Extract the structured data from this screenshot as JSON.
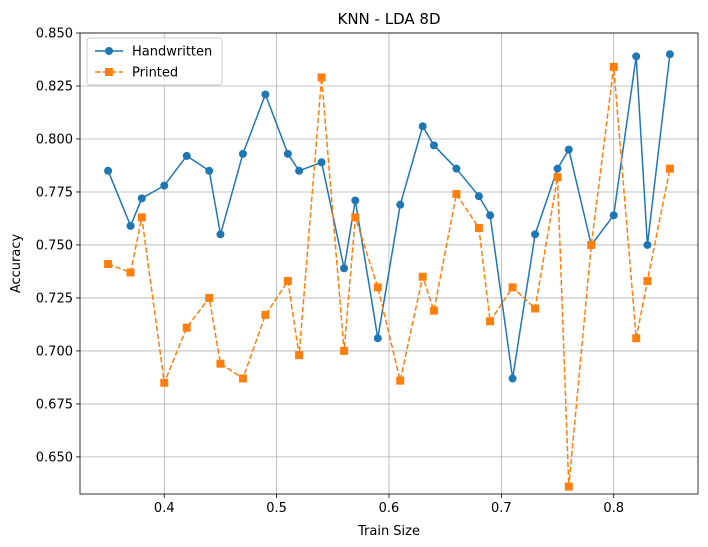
{
  "chart_data": {
    "type": "line",
    "title": "KNN - LDA 8D",
    "xlabel": "Train Size",
    "ylabel": "Accuracy",
    "xlim": [
      0.325,
      0.875
    ],
    "ylim": [
      0.6325,
      0.85
    ],
    "xticks": [
      0.4,
      0.5,
      0.6,
      0.7,
      0.8
    ],
    "xtick_labels": [
      "0.4",
      "0.5",
      "0.6",
      "0.7",
      "0.8"
    ],
    "yticks": [
      0.65,
      0.675,
      0.7,
      0.725,
      0.75,
      0.775,
      0.8,
      0.825,
      0.85
    ],
    "ytick_labels": [
      "0.650",
      "0.675",
      "0.700",
      "0.725",
      "0.750",
      "0.775",
      "0.800",
      "0.825",
      "0.850"
    ],
    "grid": true,
    "legend": "upper-left",
    "x": [
      0.35,
      0.37,
      0.38,
      0.4,
      0.42,
      0.44,
      0.45,
      0.47,
      0.49,
      0.51,
      0.52,
      0.54,
      0.56,
      0.57,
      0.59,
      0.61,
      0.63,
      0.64,
      0.66,
      0.68,
      0.69,
      0.71,
      0.73,
      0.75,
      0.76,
      0.78,
      0.8,
      0.82,
      0.83,
      0.85
    ],
    "series": [
      {
        "name": "Handwritten",
        "color": "#1f77b4",
        "marker": "circle",
        "linestyle": "solid",
        "values": [
          0.785,
          0.759,
          0.772,
          0.778,
          0.792,
          0.785,
          0.755,
          0.793,
          0.821,
          0.793,
          0.785,
          0.789,
          0.739,
          0.771,
          0.706,
          0.769,
          0.806,
          0.797,
          0.786,
          0.773,
          0.764,
          0.687,
          0.755,
          0.786,
          0.795,
          0.75,
          0.764,
          0.839,
          0.75,
          0.84
        ]
      },
      {
        "name": "Printed",
        "color": "#ff7f0e",
        "marker": "square",
        "linestyle": "dashed",
        "values": [
          0.741,
          0.737,
          0.763,
          0.685,
          0.711,
          0.725,
          0.694,
          0.687,
          0.717,
          0.733,
          0.698,
          0.829,
          0.7,
          0.763,
          0.73,
          0.686,
          0.735,
          0.719,
          0.774,
          0.758,
          0.714,
          0.73,
          0.72,
          0.782,
          0.636,
          0.75,
          0.834,
          0.706,
          0.733,
          0.786
        ]
      }
    ]
  }
}
